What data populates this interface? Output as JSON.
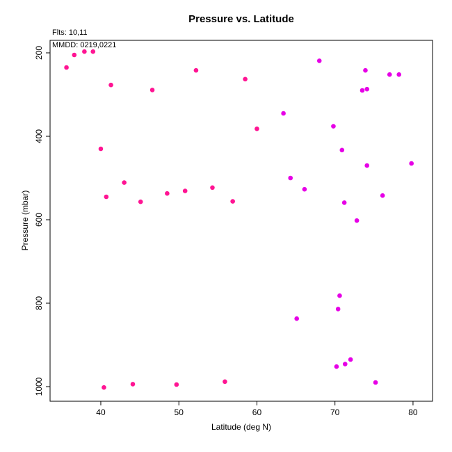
{
  "chart_data": {
    "type": "scatter",
    "title": "Pressure vs. Latitude",
    "annotations": [
      "Flts: 10,11",
      "MMDD: 0219,0221"
    ],
    "xlabel": "Latitude (deg N)",
    "ylabel": "Pressure (mbar)",
    "xlim": [
      33.5,
      82.5
    ],
    "ylim": [
      1035,
      170
    ],
    "y_inverted": true,
    "xticks": [
      40,
      50,
      60,
      70,
      80
    ],
    "yticks": [
      200,
      400,
      600,
      800,
      1000
    ],
    "grid": false,
    "legend": "none",
    "colors": {
      "flight_a": "#ff1493",
      "flight_b": "#e600e6"
    },
    "series": [
      {
        "color_key": "flight_a",
        "points": [
          [
            35.6,
            235
          ],
          [
            36.6,
            205
          ],
          [
            37.9,
            197
          ],
          [
            39.0,
            197
          ],
          [
            41.3,
            277
          ],
          [
            46.6,
            289
          ],
          [
            52.2,
            242
          ],
          [
            58.5,
            263
          ],
          [
            60.0,
            382
          ],
          [
            40.0,
            430
          ],
          [
            43.0,
            511
          ],
          [
            40.7,
            545
          ],
          [
            45.1,
            557
          ],
          [
            48.5,
            537
          ],
          [
            50.8,
            531
          ],
          [
            54.3,
            523
          ],
          [
            56.9,
            556
          ],
          [
            40.4,
            1002
          ],
          [
            44.1,
            994
          ],
          [
            49.7,
            995
          ],
          [
            55.9,
            988
          ]
        ]
      },
      {
        "color_key": "flight_b",
        "points": [
          [
            63.4,
            345
          ],
          [
            68.0,
            219
          ],
          [
            73.9,
            242
          ],
          [
            73.5,
            290
          ],
          [
            74.1,
            287
          ],
          [
            77.0,
            252
          ],
          [
            78.2,
            252
          ],
          [
            69.8,
            376
          ],
          [
            70.9,
            433
          ],
          [
            74.1,
            470
          ],
          [
            79.8,
            465
          ],
          [
            64.3,
            500
          ],
          [
            66.1,
            527
          ],
          [
            71.2,
            559
          ],
          [
            76.1,
            542
          ],
          [
            72.8,
            602
          ],
          [
            70.6,
            782
          ],
          [
            70.4,
            814
          ],
          [
            65.1,
            837
          ],
          [
            70.2,
            952
          ],
          [
            71.3,
            946
          ],
          [
            72.0,
            935
          ],
          [
            75.2,
            990
          ]
        ]
      }
    ]
  }
}
